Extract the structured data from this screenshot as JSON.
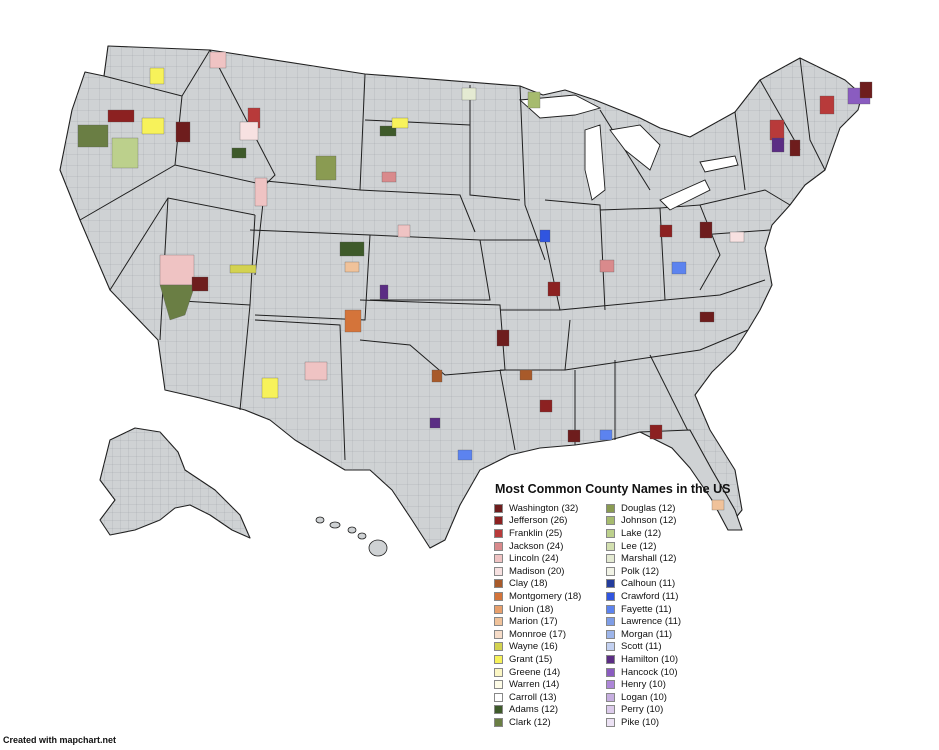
{
  "map": {
    "title": "Most Common County Names in the US",
    "credit": "Created with mapchart.net",
    "legend_column_1": [
      {
        "label": "Washington (32)",
        "color": "#6e1d1d"
      },
      {
        "label": "Jefferson (26)",
        "color": "#8c2121"
      },
      {
        "label": "Franklin (25)",
        "color": "#b83a3a"
      },
      {
        "label": "Jackson (24)",
        "color": "#d98a8c"
      },
      {
        "label": "Lincoln (24)",
        "color": "#efc3c3"
      },
      {
        "label": "Madison (20)",
        "color": "#f7e1e1"
      },
      {
        "label": "Clay (18)",
        "color": "#a85a2a"
      },
      {
        "label": "Montgomery (18)",
        "color": "#d4743a"
      },
      {
        "label": "Union (18)",
        "color": "#e8a06c"
      },
      {
        "label": "Marion (17)",
        "color": "#f0c29a"
      },
      {
        "label": "Monnroe (17)",
        "color": "#f6dcc8"
      },
      {
        "label": "Wayne (16)",
        "color": "#d3d250"
      },
      {
        "label": "Grant (15)",
        "color": "#f7f25a"
      },
      {
        "label": "Greene (14)",
        "color": "#fbf6c4"
      },
      {
        "label": "Warren (14)",
        "color": "#fdfbe6"
      },
      {
        "label": "Carroll (13)",
        "color": "#ffffff"
      },
      {
        "label": "Adams (12)",
        "color": "#3e5a2a"
      },
      {
        "label": "Clark (12)",
        "color": "#6a7e44"
      }
    ],
    "legend_column_2": [
      {
        "label": "Douglas (12)",
        "color": "#8a9b52"
      },
      {
        "label": "Johnson (12)",
        "color": "#a6bb6e"
      },
      {
        "label": "Lake (12)",
        "color": "#bcd08c"
      },
      {
        "label": "Lee (12)",
        "color": "#d3e0b0"
      },
      {
        "label": "Marshall (12)",
        "color": "#e4ead2"
      },
      {
        "label": "Polk (12)",
        "color": "#f1f3e6"
      },
      {
        "label": "Calhoun (11)",
        "color": "#233c9c"
      },
      {
        "label": "Crawford (11)",
        "color": "#3055e0"
      },
      {
        "label": "Fayette (11)",
        "color": "#5c83ef"
      },
      {
        "label": "Lawrence (11)",
        "color": "#7e9de6"
      },
      {
        "label": "Morgan (11)",
        "color": "#9db5ea"
      },
      {
        "label": "Scott (11)",
        "color": "#c3d1f1"
      },
      {
        "label": "Hamilton (10)",
        "color": "#5b2d84"
      },
      {
        "label": "Hancock (10)",
        "color": "#8a5cc0"
      },
      {
        "label": "Henry (10)",
        "color": "#ad86d8"
      },
      {
        "label": "Logan (10)",
        "color": "#c6aee0"
      },
      {
        "label": "Perry (10)",
        "color": "#dccbeb"
      },
      {
        "label": "Pike (10)",
        "color": "#ece2f4"
      }
    ]
  }
}
